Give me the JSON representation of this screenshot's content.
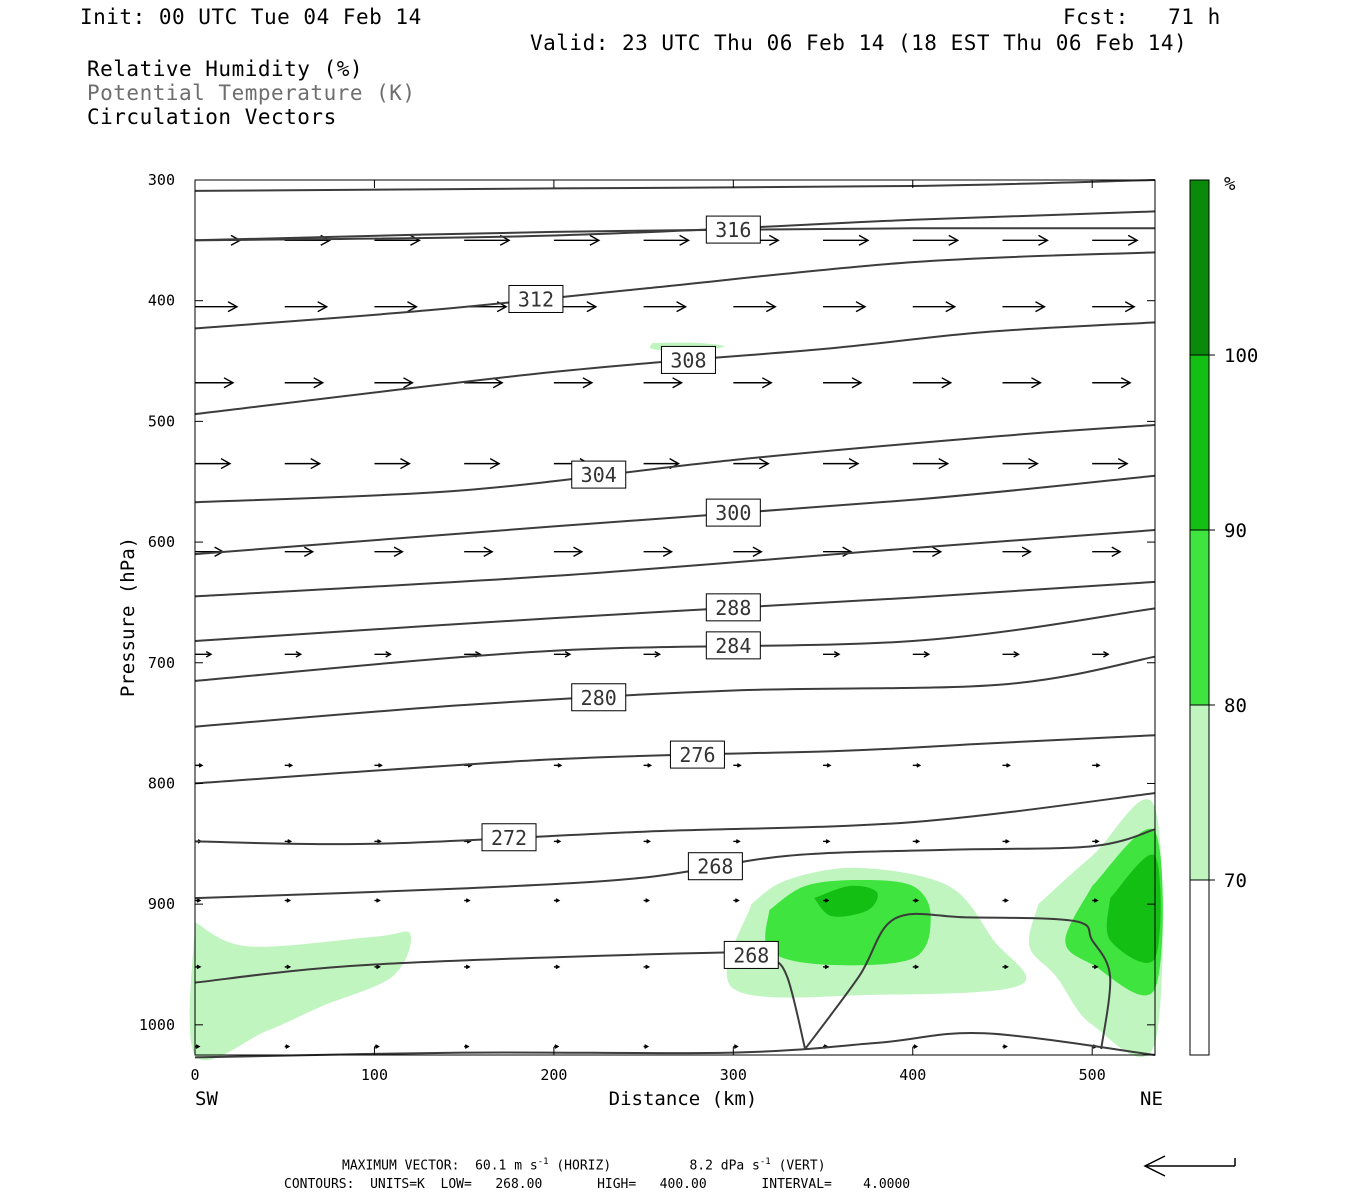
{
  "header": {
    "init": "Init: 00 UTC Tue 04 Feb 14",
    "fcst": "Fcst:   71 h",
    "valid": "Valid: 23 UTC Thu 06 Feb 14 (18 EST Thu 06 Feb 14)",
    "fields": [
      "Relative Humidity (%)",
      "Potential Temperature (K)",
      "Circulation Vectors"
    ]
  },
  "colors": {
    "rh70": "#c0f5c0",
    "rh80": "#3fe43f",
    "rh90": "#14bf14",
    "rh100": "#0a8a0a",
    "contour": "#3c3c3c",
    "vector": "#000000"
  },
  "footer": {
    "max_label": "MAXIMUM VECTOR:",
    "horiz_value": "60.1 m s",
    "horiz_unit": "(HORIZ)",
    "vert_value": "8.2 dPa s",
    "vert_unit": "(VERT)",
    "contours_line": "CONTOURS:  UNITS=K  LOW=   268.00       HIGH=   400.00       INTERVAL=    4.0000",
    "exponent": "-1"
  },
  "chart_data": {
    "type": "contour",
    "xlabel": "Distance (km)",
    "ylabel": "Pressure (hPa)",
    "xlim": [
      0,
      535
    ],
    "ylim": [
      1025,
      300
    ],
    "xticks": [
      0,
      100,
      200,
      300,
      400,
      500
    ],
    "yticks": [
      300,
      400,
      500,
      600,
      700,
      800,
      900,
      1000
    ],
    "x_end_labels": [
      "SW",
      "NE"
    ],
    "colorbar": {
      "unit": "%",
      "levels": [
        70,
        80,
        90,
        100
      ],
      "tick_labels": [
        "70",
        "80",
        "90",
        "100"
      ]
    },
    "theta_contours": [
      {
        "label": "316",
        "show_label": true,
        "pts": [
          [
            0,
            350
          ],
          [
            200,
            343
          ],
          [
            400,
            340
          ],
          [
            535,
            340
          ]
        ]
      },
      {
        "label": "316",
        "show_label": false,
        "pts": [
          [
            0,
            309
          ],
          [
            200,
            307
          ],
          [
            400,
            305
          ],
          [
            535,
            300
          ]
        ]
      },
      {
        "label": "",
        "show_label": false,
        "pts": [
          [
            0,
            350
          ],
          [
            200,
            346
          ],
          [
            400,
            333
          ],
          [
            535,
            326
          ]
        ]
      },
      {
        "label": "312",
        "show_label": true,
        "pts": [
          [
            0,
            423
          ],
          [
            130,
            408
          ],
          [
            250,
            390
          ],
          [
            400,
            368
          ],
          [
            535,
            360
          ]
        ]
      },
      {
        "label": "308",
        "show_label": true,
        "pts": [
          [
            0,
            494
          ],
          [
            200,
            459
          ],
          [
            350,
            440
          ],
          [
            440,
            426
          ],
          [
            535,
            418
          ]
        ]
      },
      {
        "label": "304",
        "show_label": true,
        "pts": [
          [
            0,
            567
          ],
          [
            150,
            557
          ],
          [
            300,
            532
          ],
          [
            450,
            512
          ],
          [
            535,
            503
          ]
        ]
      },
      {
        "label": "300",
        "show_label": true,
        "pts": [
          [
            0,
            610
          ],
          [
            200,
            587
          ],
          [
            400,
            565
          ],
          [
            535,
            545
          ]
        ]
      },
      {
        "label": "",
        "show_label": false,
        "pts": [
          [
            0,
            645
          ],
          [
            200,
            628
          ],
          [
            400,
            605
          ],
          [
            535,
            590
          ]
        ]
      },
      {
        "label": "288",
        "show_label": true,
        "pts": [
          [
            0,
            682
          ],
          [
            200,
            663
          ],
          [
            400,
            646
          ],
          [
            535,
            633
          ]
        ]
      },
      {
        "label": "284",
        "show_label": true,
        "pts": [
          [
            0,
            715
          ],
          [
            200,
            690
          ],
          [
            400,
            682
          ],
          [
            535,
            655
          ]
        ]
      },
      {
        "label": "280",
        "show_label": true,
        "pts": [
          [
            0,
            753
          ],
          [
            150,
            735
          ],
          [
            300,
            723
          ],
          [
            450,
            718
          ],
          [
            535,
            695
          ]
        ]
      },
      {
        "label": "276",
        "show_label": true,
        "pts": [
          [
            0,
            800
          ],
          [
            200,
            780
          ],
          [
            360,
            773
          ],
          [
            440,
            767
          ],
          [
            535,
            760
          ]
        ]
      },
      {
        "label": "272",
        "show_label": true,
        "pts": [
          [
            0,
            848
          ],
          [
            100,
            850
          ],
          [
            250,
            840
          ],
          [
            400,
            832
          ],
          [
            535,
            808
          ]
        ]
      },
      {
        "label": "268",
        "show_label": true,
        "pts": [
          [
            0,
            895
          ],
          [
            150,
            887
          ],
          [
            250,
            878
          ],
          [
            330,
            860
          ],
          [
            420,
            855
          ],
          [
            500,
            852
          ],
          [
            535,
            838
          ]
        ]
      },
      {
        "label": "268",
        "show_label": true,
        "pts": [
          [
            0,
            965
          ],
          [
            100,
            950
          ],
          [
            300,
            940
          ],
          [
            320,
            945
          ],
          [
            330,
            960
          ],
          [
            340,
            1020
          ]
        ]
      },
      {
        "label": "",
        "show_label": false,
        "pts": [
          [
            340,
            1020
          ],
          [
            370,
            960
          ],
          [
            390,
            912
          ],
          [
            430,
            911
          ],
          [
            490,
            914
          ],
          [
            500,
            930
          ],
          [
            510,
            960
          ],
          [
            505,
            1020
          ]
        ]
      },
      {
        "label": "",
        "show_label": false,
        "pts": [
          [
            0,
            1027
          ],
          [
            150,
            1023
          ],
          [
            300,
            1023
          ],
          [
            380,
            1015
          ],
          [
            440,
            1007
          ],
          [
            535,
            1025
          ]
        ]
      }
    ],
    "rh_regions": [
      {
        "level": 70,
        "pts": [
          [
            0,
            915
          ],
          [
            30,
            935
          ],
          [
            100,
            927
          ],
          [
            120,
            925
          ],
          [
            110,
            960
          ],
          [
            70,
            985
          ],
          [
            40,
            1005
          ],
          [
            0,
            1025
          ]
        ]
      },
      {
        "level": 70,
        "pts": [
          [
            255,
            435
          ],
          [
            280,
            435
          ],
          [
            295,
            438
          ],
          [
            275,
            442
          ],
          [
            255,
            440
          ]
        ]
      },
      {
        "level": 70,
        "pts": [
          [
            310,
            900
          ],
          [
            330,
            880
          ],
          [
            370,
            870
          ],
          [
            420,
            885
          ],
          [
            445,
            930
          ],
          [
            460,
            967
          ],
          [
            380,
            975
          ],
          [
            300,
            970
          ]
        ]
      },
      {
        "level": 70,
        "pts": [
          [
            470,
            900
          ],
          [
            500,
            860
          ],
          [
            535,
            820
          ],
          [
            535,
            1015
          ],
          [
            500,
            1000
          ],
          [
            480,
            960
          ],
          [
            465,
            935
          ]
        ]
      },
      {
        "level": 80,
        "pts": [
          [
            320,
            905
          ],
          [
            340,
            885
          ],
          [
            370,
            880
          ],
          [
            400,
            885
          ],
          [
            410,
            910
          ],
          [
            400,
            945
          ],
          [
            350,
            950
          ],
          [
            320,
            938
          ]
        ]
      },
      {
        "level": 80,
        "pts": [
          [
            500,
            885
          ],
          [
            535,
            840
          ],
          [
            535,
            970
          ],
          [
            500,
            950
          ],
          [
            485,
            930
          ]
        ]
      },
      {
        "level": 90,
        "pts": [
          [
            345,
            895
          ],
          [
            365,
            885
          ],
          [
            380,
            890
          ],
          [
            375,
            905
          ],
          [
            355,
            910
          ]
        ]
      },
      {
        "level": 90,
        "pts": [
          [
            510,
            895
          ],
          [
            535,
            860
          ],
          [
            535,
            945
          ],
          [
            510,
            930
          ]
        ]
      }
    ],
    "vectors_h": [
      {
        "p": 350,
        "xs": [
          0,
          50,
          100,
          150,
          200,
          250,
          300,
          350,
          400,
          450,
          500
        ],
        "len": 45
      },
      {
        "p": 405,
        "xs": [
          0,
          50,
          100,
          150,
          200,
          250,
          300,
          350,
          400,
          450,
          500
        ],
        "len": 42
      },
      {
        "p": 468,
        "xs": [
          0,
          50,
          100,
          150,
          200,
          250,
          300,
          350,
          400,
          450,
          500
        ],
        "len": 38
      },
      {
        "p": 535,
        "xs": [
          0,
          50,
          100,
          150,
          200,
          250,
          300,
          350,
          400,
          450,
          500
        ],
        "len": 35
      },
      {
        "p": 608,
        "xs": [
          0,
          50,
          100,
          150,
          200,
          250,
          300,
          350,
          400,
          450,
          500
        ],
        "len": 28
      },
      {
        "p": 693,
        "xs": [
          0,
          50,
          100,
          150,
          200,
          250,
          300,
          350,
          400,
          450,
          500
        ],
        "len": 16
      },
      {
        "p": 785,
        "xs": [
          0,
          50,
          100,
          150,
          200,
          250,
          300,
          350,
          400,
          450,
          500
        ],
        "len": 7
      },
      {
        "p": 848,
        "xs": [
          0,
          50,
          100,
          150,
          200,
          250,
          300,
          350,
          400,
          450,
          500
        ],
        "len": 6
      },
      {
        "p": 897,
        "xs": [
          0,
          50,
          100,
          150,
          200,
          250,
          300,
          350,
          400,
          450,
          500
        ],
        "len": 5
      },
      {
        "p": 952,
        "xs": [
          0,
          50,
          100,
          150,
          200,
          250,
          300,
          350,
          400,
          450,
          500
        ],
        "len": 5
      },
      {
        "p": 1018,
        "xs": [
          0,
          50,
          100,
          150,
          200,
          250,
          300,
          350,
          400,
          450,
          500
        ],
        "len": 4
      }
    ]
  }
}
